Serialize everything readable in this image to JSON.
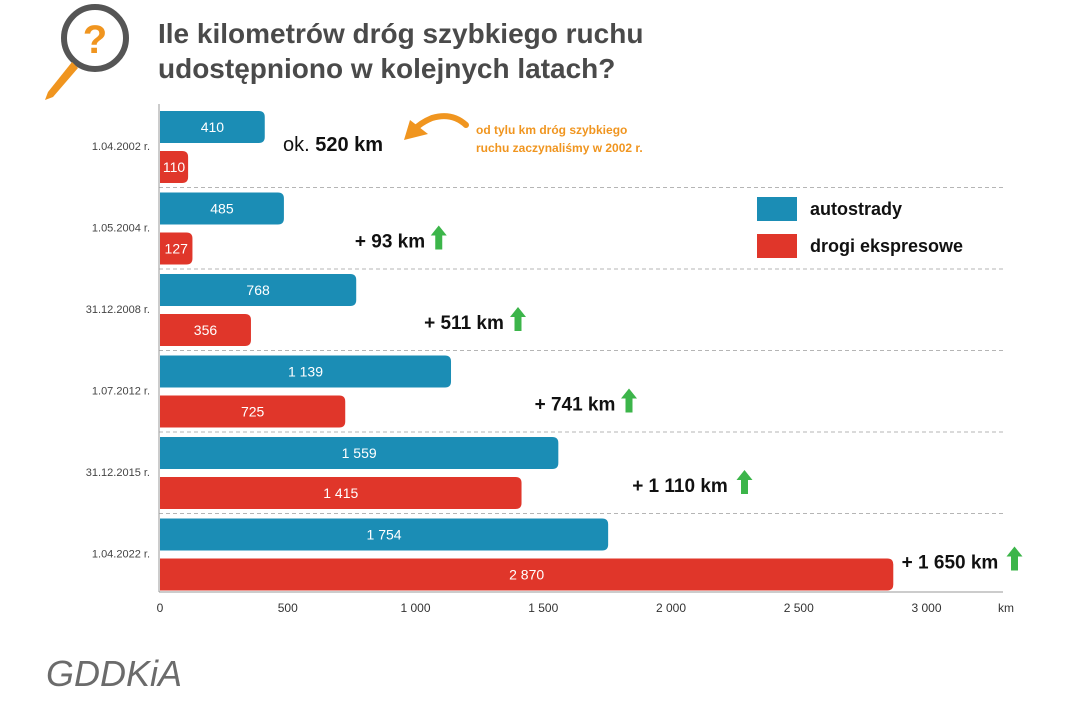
{
  "title": {
    "line1": "Ile kilometrów dróg szybkiego ruchu",
    "line2": "udostępniono w kolejnych latach?"
  },
  "source": "GDDKiA",
  "icons": {
    "header": "question-magnifier-icon",
    "increase": "green-up-arrow-icon",
    "note": "curved-arrow-icon"
  },
  "colors": {
    "autostrady": "#1b8db5",
    "ekspresowe": "#e0362a",
    "accent": "#f0951f",
    "arrow_green": "#3cb54a",
    "title": "#4a4a4a"
  },
  "annotation": {
    "ok_prefix": "ok. ",
    "ok_value": "520 km",
    "note_line1": "od tylu km dróg szybkiego",
    "note_line2": "ruchu zaczynaliśmy w 2002 r."
  },
  "chart_data": {
    "type": "bar",
    "orientation": "horizontal",
    "categories": [
      "1.04.2002 r.",
      "1.05.2004 r.",
      "31.12.2008 r.",
      "1.07.2012 r.",
      "31.12.2015 r.",
      "1.04.2022 r."
    ],
    "series": [
      {
        "name": "autostrady",
        "values": [
          410,
          485,
          768,
          1139,
          1559,
          1754
        ],
        "labels": [
          "410",
          "485",
          "768",
          "1 139",
          "1 559",
          "1 754"
        ]
      },
      {
        "name": "drogi ekspresowe",
        "values": [
          110,
          127,
          356,
          725,
          1415,
          2870
        ],
        "labels": [
          "110",
          "127",
          "356",
          "725",
          "1 415",
          "2 870"
        ]
      }
    ],
    "increases": [
      "",
      "+ 93 km",
      "+ 511 km",
      "+ 741 km",
      "+ 1 110 km",
      "+ 1 650 km"
    ],
    "x_ticks": [
      0,
      500,
      1000,
      1500,
      2000,
      2500,
      3000
    ],
    "x_tick_labels": [
      "0",
      "500",
      "1 000",
      "1 500",
      "2 000",
      "2 500",
      "3 000"
    ],
    "xlabel": "km",
    "xlim": [
      0,
      3250
    ],
    "legend_position": "top-right",
    "grid": "dashed separators between groups"
  }
}
